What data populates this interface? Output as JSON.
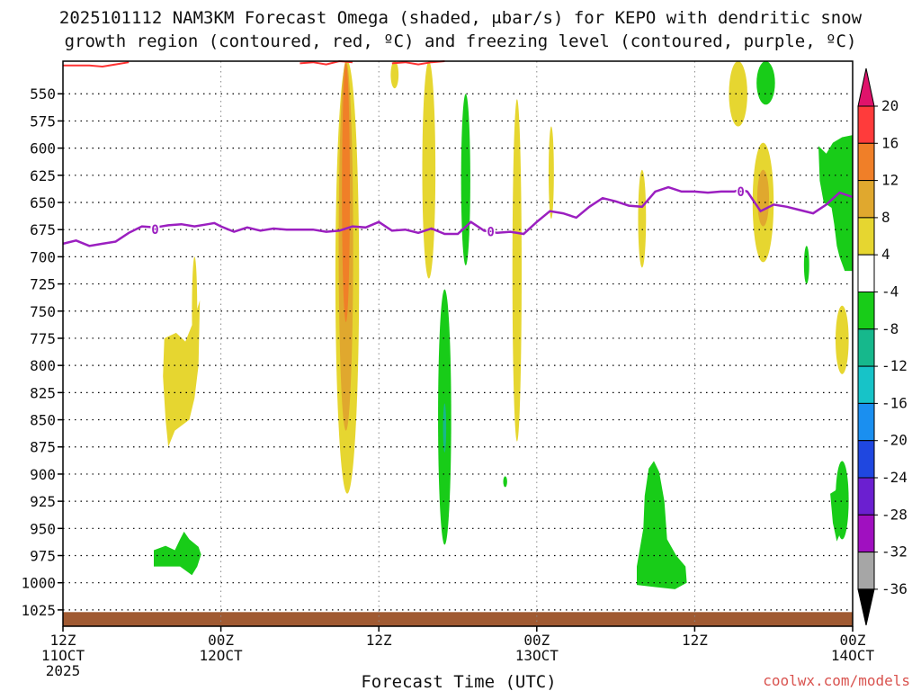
{
  "chart_data": {
    "type": "heatmap",
    "title_line1": "2025101112 NAM3KM Forecast Omega (shaded, μbar/s) for KEPO with dendritic snow",
    "title_line2": "growth region (contoured, red, ºC) and freezing level (contoured, purple, ºC)",
    "xlabel": "Forecast Time (UTC)",
    "credit": "coolwx.com/models",
    "y_levels": [
      550,
      575,
      600,
      625,
      650,
      675,
      700,
      725,
      750,
      775,
      800,
      825,
      850,
      875,
      900,
      925,
      950,
      975,
      1000,
      1025
    ],
    "y_range": [
      520,
      1040
    ],
    "x_range": [
      0,
      60
    ],
    "grid": true,
    "x_ticks": [
      {
        "hour": 0,
        "line1": "12Z",
        "line2": "11OCT",
        "line3": "2025"
      },
      {
        "hour": 12,
        "line1": "00Z",
        "line2": "12OCT",
        "line3": ""
      },
      {
        "hour": 24,
        "line1": "12Z",
        "line2": "",
        "line3": ""
      },
      {
        "hour": 36,
        "line1": "00Z",
        "line2": "13OCT",
        "line3": ""
      },
      {
        "hour": 48,
        "line1": "12Z",
        "line2": "",
        "line3": ""
      },
      {
        "hour": 60,
        "line1": "00Z",
        "line2": "14OCT",
        "line3": ""
      }
    ],
    "colorbar": {
      "labels": [
        "20",
        "16",
        "12",
        "8",
        "4",
        "-4",
        "-8",
        "-12",
        "-16",
        "-20",
        "-24",
        "-28",
        "-32",
        "-36"
      ],
      "bins": [
        {
          "range": "16 to 20",
          "color": "#ff3b3b"
        },
        {
          "range": "12 to 16",
          "color": "#f07f28"
        },
        {
          "range": "8 to 12",
          "color": "#e0a82e"
        },
        {
          "range": "4 to 8",
          "color": "#e6d630"
        },
        {
          "range": "-4 to 4",
          "color": "#ffffff"
        },
        {
          "range": "-8 to -4",
          "color": "#18cc18"
        },
        {
          "range": "-12 to -8",
          "color": "#16b88c"
        },
        {
          "range": "-16 to -12",
          "color": "#17c3c8"
        },
        {
          "range": "-20 to -16",
          "color": "#1a8ff0"
        },
        {
          "range": "-24 to -20",
          "color": "#1f47e0"
        },
        {
          "range": "-28 to -24",
          "color": "#6b1fd0"
        },
        {
          "range": "-32 to -28",
          "color": "#a010c0"
        },
        {
          "range": "-36 to -32",
          "color": "#a6a6a6"
        }
      ],
      "over_color": "#e0136b",
      "under_color": "#000000"
    },
    "freezing_level": {
      "color": "#9b1fc0",
      "label": "0",
      "label_points": [
        {
          "hour": 7,
          "level": 675
        },
        {
          "hour": 32.5,
          "level": 677
        },
        {
          "hour": 51.5,
          "level": 640
        }
      ],
      "points": [
        [
          0,
          688
        ],
        [
          1,
          685
        ],
        [
          2,
          690
        ],
        [
          3,
          688
        ],
        [
          4,
          686
        ],
        [
          5,
          678
        ],
        [
          6,
          672
        ],
        [
          7,
          673
        ],
        [
          8,
          671
        ],
        [
          9,
          670
        ],
        [
          10,
          672
        ],
        [
          11,
          670
        ],
        [
          11.5,
          669
        ],
        [
          12,
          672
        ],
        [
          13,
          677
        ],
        [
          14,
          673
        ],
        [
          15,
          676
        ],
        [
          16,
          674
        ],
        [
          17,
          675
        ],
        [
          18,
          675
        ],
        [
          19,
          675
        ],
        [
          20,
          677
        ],
        [
          21,
          676
        ],
        [
          22,
          672
        ],
        [
          23,
          673
        ],
        [
          24,
          668
        ],
        [
          25,
          676
        ],
        [
          26,
          675
        ],
        [
          27,
          678
        ],
        [
          28,
          674
        ],
        [
          29,
          679
        ],
        [
          30,
          679
        ],
        [
          31,
          668
        ],
        [
          32,
          676
        ],
        [
          33,
          678
        ],
        [
          34,
          677
        ],
        [
          35,
          679
        ],
        [
          36,
          668
        ],
        [
          37,
          658
        ],
        [
          38,
          660
        ],
        [
          39,
          664
        ],
        [
          40,
          654
        ],
        [
          41,
          646
        ],
        [
          42,
          649
        ],
        [
          43,
          653
        ],
        [
          44,
          654
        ],
        [
          45,
          640
        ],
        [
          46,
          636
        ],
        [
          47,
          640
        ],
        [
          48,
          640
        ],
        [
          49,
          641
        ],
        [
          50,
          640
        ],
        [
          51,
          640
        ],
        [
          51.5,
          638
        ],
        [
          52,
          640
        ],
        [
          53,
          658
        ],
        [
          54,
          652
        ],
        [
          55,
          654
        ],
        [
          56,
          657
        ],
        [
          57,
          660
        ],
        [
          58,
          652
        ],
        [
          59,
          641
        ],
        [
          60,
          645
        ]
      ]
    },
    "dendritic_contour": {
      "color": "#ff3333",
      "segments": [
        [
          [
            0,
            524
          ],
          [
            2,
            524
          ],
          [
            3,
            525
          ],
          [
            4,
            523
          ],
          [
            5,
            521
          ]
        ],
        [
          [
            18,
            522
          ],
          [
            19,
            521
          ],
          [
            20,
            523
          ],
          [
            21,
            520
          ],
          [
            22,
            521
          ]
        ],
        [
          [
            25,
            522
          ],
          [
            26,
            521
          ],
          [
            27,
            523
          ],
          [
            28,
            521
          ],
          [
            29,
            520
          ]
        ]
      ]
    },
    "omega_regions": [
      {
        "color": "#e6d630",
        "hour": 21.6,
        "halfwidth": 0.9,
        "top": 520,
        "bottom": 918
      },
      {
        "color": "#e0a82e",
        "hour": 21.5,
        "halfwidth": 0.55,
        "top": 520,
        "bottom": 860
      },
      {
        "color": "#f07f28",
        "hour": 21.5,
        "halfwidth": 0.3,
        "top": 522,
        "bottom": 760
      },
      {
        "color": "#e6d630",
        "hour": 27.8,
        "halfwidth": 0.5,
        "top": 520,
        "bottom": 720
      },
      {
        "color": "#e6d630",
        "hour": 25.2,
        "halfwidth": 0.3,
        "top": 520,
        "bottom": 545
      },
      {
        "color": "#18cc18",
        "hour": 30.6,
        "halfwidth": 0.35,
        "top": 550,
        "bottom": 708
      },
      {
        "color": "#e6d630",
        "hour": 34.5,
        "halfwidth": 0.35,
        "top": 555,
        "bottom": 870
      },
      {
        "color": "#e6d630",
        "hour": 37.1,
        "halfwidth": 0.2,
        "top": 580,
        "bottom": 665
      },
      {
        "color": "#18cc18",
        "hour": 29.0,
        "halfwidth": 0.5,
        "top": 730,
        "bottom": 965
      },
      {
        "color": "#16b88c",
        "hour": 29.0,
        "halfwidth": 0.12,
        "top": 835,
        "bottom": 880
      },
      {
        "color": "#e6d630",
        "hour": 10.0,
        "halfwidth": 0.2,
        "top": 700,
        "bottom": 800
      },
      {
        "color": "#e6d630",
        "hour": 44.0,
        "halfwidth": 0.3,
        "top": 620,
        "bottom": 710
      },
      {
        "color": "#e6d630",
        "hour": 51.3,
        "halfwidth": 0.7,
        "top": 520,
        "bottom": 580
      },
      {
        "color": "#18cc18",
        "hour": 53.4,
        "halfwidth": 0.7,
        "top": 520,
        "bottom": 560
      },
      {
        "color": "#e6d630",
        "hour": 53.2,
        "halfwidth": 0.8,
        "top": 595,
        "bottom": 705
      },
      {
        "color": "#e0a82e",
        "hour": 53.2,
        "halfwidth": 0.45,
        "top": 620,
        "bottom": 672
      },
      {
        "color": "#18cc18",
        "hour": 56.5,
        "halfwidth": 0.2,
        "top": 690,
        "bottom": 725
      },
      {
        "color": "#e6d630",
        "hour": 59.2,
        "halfwidth": 0.5,
        "top": 745,
        "bottom": 808
      },
      {
        "color": "#18cc18",
        "hour": 33.6,
        "halfwidth": 0.15,
        "top": 902,
        "bottom": 912
      },
      {
        "color": "#18cc18",
        "hour": 59.2,
        "halfwidth": 0.5,
        "top": 888,
        "bottom": 960
      }
    ],
    "omega_polygons": [
      {
        "color": "#e6d630",
        "points": [
          [
            7.7,
            775
          ],
          [
            8.6,
            770
          ],
          [
            9.3,
            778
          ],
          [
            9.9,
            760
          ],
          [
            10.4,
            740
          ],
          [
            10.3,
            800
          ],
          [
            10.0,
            830
          ],
          [
            9.6,
            850
          ],
          [
            8.5,
            860
          ],
          [
            8.0,
            875
          ],
          [
            7.8,
            850
          ],
          [
            7.6,
            810
          ]
        ]
      },
      {
        "color": "#18cc18",
        "points": [
          [
            6.9,
            970
          ],
          [
            7.8,
            966
          ],
          [
            8.5,
            970
          ],
          [
            8.9,
            960
          ],
          [
            9.2,
            953
          ],
          [
            9.6,
            960
          ],
          [
            10.3,
            967
          ],
          [
            10.5,
            974
          ],
          [
            10.2,
            985
          ],
          [
            9.8,
            993
          ],
          [
            8.9,
            985
          ],
          [
            8.0,
            985
          ],
          [
            6.9,
            985
          ]
        ]
      },
      {
        "color": "#18cc18",
        "points": [
          [
            44.5,
            895
          ],
          [
            44.9,
            888
          ],
          [
            45.3,
            898
          ],
          [
            45.7,
            925
          ],
          [
            45.9,
            960
          ],
          [
            46.6,
            975
          ],
          [
            47.3,
            985
          ],
          [
            47.4,
            1000
          ],
          [
            46.5,
            1006
          ],
          [
            45.0,
            1004
          ],
          [
            43.6,
            1002
          ],
          [
            43.6,
            985
          ],
          [
            44.1,
            950
          ],
          [
            44.2,
            920
          ]
        ]
      },
      {
        "color": "#18cc18",
        "points": [
          [
            57.4,
            598
          ],
          [
            58.0,
            605
          ],
          [
            58.5,
            595
          ],
          [
            59.2,
            590
          ],
          [
            60,
            588
          ],
          [
            60,
            713
          ],
          [
            59.4,
            713
          ],
          [
            59.0,
            700
          ],
          [
            58.8,
            690
          ],
          [
            58.6,
            670
          ],
          [
            58.4,
            655
          ],
          [
            57.8,
            650
          ],
          [
            57.5,
            630
          ]
        ]
      },
      {
        "color": "#18cc18",
        "points": [
          [
            58.3,
            918
          ],
          [
            58.7,
            915
          ],
          [
            59.0,
            905
          ],
          [
            59.2,
            950
          ],
          [
            58.8,
            962
          ],
          [
            58.5,
            945
          ]
        ]
      }
    ],
    "terrain": {
      "color": "#a05a32",
      "top": 1027,
      "bottom": 1040
    }
  }
}
